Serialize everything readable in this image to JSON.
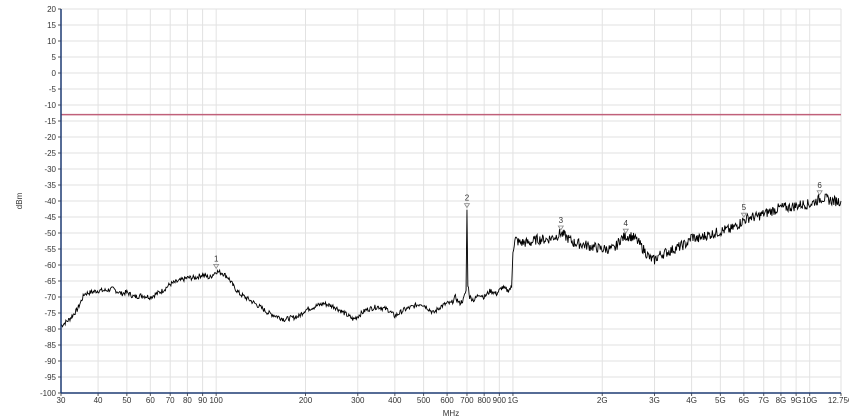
{
  "chart_data": {
    "type": "line",
    "title": "",
    "xlabel": "MHz",
    "ylabel": "dBm",
    "x_scale": "log",
    "xlim": [
      30,
      12750
    ],
    "ylim": [
      -100,
      20
    ],
    "y_ticks": [
      20,
      15,
      10,
      5,
      0,
      -5,
      -10,
      -15,
      -20,
      -25,
      -30,
      -35,
      -40,
      -45,
      -50,
      -55,
      -60,
      -65,
      -70,
      -75,
      -80,
      -85,
      -90,
      -95,
      -100
    ],
    "x_ticks": [
      {
        "value": 30,
        "label": "30"
      },
      {
        "value": 40,
        "label": "40"
      },
      {
        "value": 50,
        "label": "50"
      },
      {
        "value": 60,
        "label": "60"
      },
      {
        "value": 70,
        "label": "70"
      },
      {
        "value": 80,
        "label": "80"
      },
      {
        "value": 90,
        "label": "90"
      },
      {
        "value": 100,
        "label": "100"
      },
      {
        "value": 200,
        "label": "200"
      },
      {
        "value": 300,
        "label": "300"
      },
      {
        "value": 400,
        "label": "400"
      },
      {
        "value": 500,
        "label": "500"
      },
      {
        "value": 600,
        "label": "600"
      },
      {
        "value": 700,
        "label": "700"
      },
      {
        "value": 800,
        "label": "800"
      },
      {
        "value": 900,
        "label": "900"
      },
      {
        "value": 1000,
        "label": "1G"
      },
      {
        "value": 2000,
        "label": "2G"
      },
      {
        "value": 3000,
        "label": "3G"
      },
      {
        "value": 4000,
        "label": "4G"
      },
      {
        "value": 5000,
        "label": "5G"
      },
      {
        "value": 6000,
        "label": "6G"
      },
      {
        "value": 7000,
        "label": "7G"
      },
      {
        "value": 8000,
        "label": "8G"
      },
      {
        "value": 9000,
        "label": "9G"
      },
      {
        "value": 10000,
        "label": "10G"
      },
      {
        "value": 12750,
        "label": "12.75G"
      }
    ],
    "grid": true,
    "limit_line": {
      "y": -13,
      "color": "#c0607a"
    },
    "series": [
      {
        "name": "",
        "color": "#000000",
        "points": [
          [
            30,
            -79
          ],
          [
            32,
            -77
          ],
          [
            34,
            -74
          ],
          [
            36,
            -69
          ],
          [
            38,
            -68.5
          ],
          [
            40,
            -68
          ],
          [
            42,
            -68
          ],
          [
            45,
            -67.5
          ],
          [
            48,
            -69
          ],
          [
            50,
            -68.5
          ],
          [
            53,
            -70
          ],
          [
            56,
            -69.5
          ],
          [
            60,
            -70
          ],
          [
            63,
            -69
          ],
          [
            66,
            -68
          ],
          [
            70,
            -66
          ],
          [
            75,
            -65
          ],
          [
            80,
            -64
          ],
          [
            85,
            -64
          ],
          [
            90,
            -63
          ],
          [
            95,
            -64
          ],
          [
            100,
            -62
          ],
          [
            105,
            -62.5
          ],
          [
            110,
            -64
          ],
          [
            115,
            -67
          ],
          [
            120,
            -69
          ],
          [
            130,
            -71
          ],
          [
            140,
            -73
          ],
          [
            150,
            -75
          ],
          [
            160,
            -76
          ],
          [
            170,
            -77
          ],
          [
            180,
            -76.5
          ],
          [
            190,
            -76
          ],
          [
            200,
            -74
          ],
          [
            215,
            -73
          ],
          [
            230,
            -72
          ],
          [
            250,
            -73
          ],
          [
            270,
            -75
          ],
          [
            290,
            -77
          ],
          [
            300,
            -76
          ],
          [
            320,
            -74
          ],
          [
            350,
            -73
          ],
          [
            380,
            -74
          ],
          [
            400,
            -76
          ],
          [
            430,
            -74
          ],
          [
            460,
            -73
          ],
          [
            490,
            -72
          ],
          [
            510,
            -73
          ],
          [
            540,
            -75
          ],
          [
            570,
            -73
          ],
          [
            600,
            -72
          ],
          [
            620,
            -72
          ],
          [
            640,
            -70
          ],
          [
            660,
            -72
          ],
          [
            680,
            -71
          ],
          [
            695,
            -68
          ],
          [
            700,
            -43
          ],
          [
            705,
            -66
          ],
          [
            715,
            -70
          ],
          [
            740,
            -71
          ],
          [
            770,
            -69
          ],
          [
            800,
            -70
          ],
          [
            840,
            -68
          ],
          [
            880,
            -69
          ],
          [
            920,
            -67
          ],
          [
            960,
            -68
          ],
          [
            990,
            -67
          ],
          [
            1000,
            -55
          ],
          [
            1020,
            -52
          ],
          [
            1050,
            -53
          ],
          [
            1100,
            -53
          ],
          [
            1150,
            -53
          ],
          [
            1200,
            -52
          ],
          [
            1300,
            -52
          ],
          [
            1400,
            -51
          ],
          [
            1450,
            -50
          ],
          [
            1500,
            -51
          ],
          [
            1600,
            -53
          ],
          [
            1700,
            -53.5
          ],
          [
            1800,
            -54
          ],
          [
            1900,
            -54.5
          ],
          [
            2000,
            -55
          ],
          [
            2100,
            -55
          ],
          [
            2200,
            -55
          ],
          [
            2300,
            -52
          ],
          [
            2400,
            -51
          ],
          [
            2500,
            -51
          ],
          [
            2600,
            -52
          ],
          [
            2700,
            -54
          ],
          [
            2800,
            -56
          ],
          [
            2900,
            -58
          ],
          [
            3000,
            -58.5
          ],
          [
            3100,
            -57
          ],
          [
            3300,
            -56
          ],
          [
            3500,
            -55
          ],
          [
            3700,
            -54
          ],
          [
            3900,
            -53
          ],
          [
            4000,
            -51
          ],
          [
            4200,
            -52
          ],
          [
            4400,
            -51
          ],
          [
            4600,
            -50.5
          ],
          [
            4800,
            -50
          ],
          [
            5000,
            -49.5
          ],
          [
            5200,
            -49
          ],
          [
            5400,
            -49
          ],
          [
            5600,
            -48
          ],
          [
            5800,
            -47
          ],
          [
            6000,
            -46
          ],
          [
            6300,
            -45
          ],
          [
            6600,
            -45
          ],
          [
            7000,
            -44
          ],
          [
            7500,
            -43
          ],
          [
            8000,
            -42
          ],
          [
            8500,
            -42
          ],
          [
            9000,
            -41.5
          ],
          [
            9500,
            -41
          ],
          [
            10000,
            -41
          ],
          [
            10500,
            -40
          ],
          [
            11000,
            -39
          ],
          [
            11500,
            -39.5
          ],
          [
            12000,
            -40
          ],
          [
            12750,
            -40
          ]
        ]
      }
    ],
    "markers": [
      {
        "label": "1",
        "x": 100,
        "y": -62
      },
      {
        "label": "2",
        "x": 700,
        "y": -43
      },
      {
        "label": "3",
        "x": 1450,
        "y": -50
      },
      {
        "label": "4",
        "x": 2400,
        "y": -51
      },
      {
        "label": "5",
        "x": 6000,
        "y": -46
      },
      {
        "label": "6",
        "x": 10800,
        "y": -39
      }
    ]
  }
}
